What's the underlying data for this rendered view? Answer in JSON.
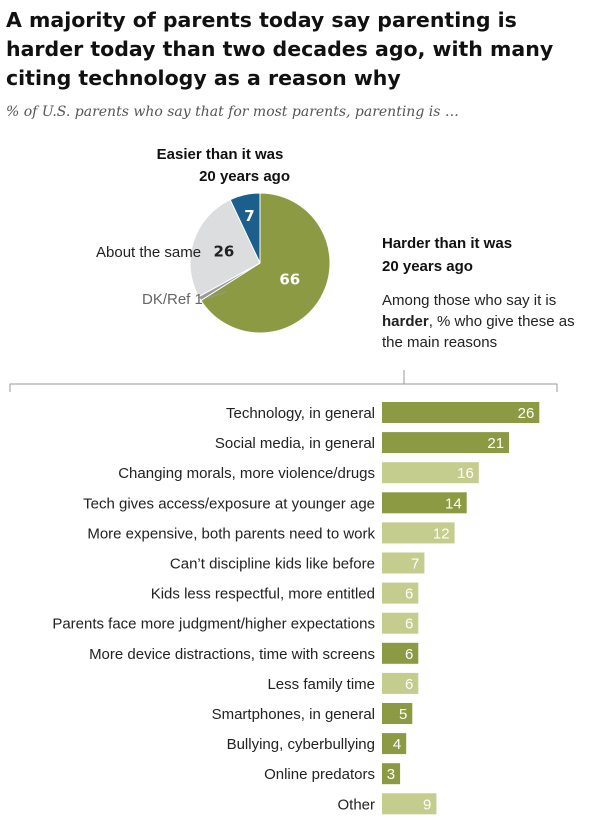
{
  "title": "A majority of parents today say parenting is harder today than two decades ago, with many citing technology as a reason why",
  "subtitle": "% of U.S. parents who say that for most parents, parenting is …",
  "colors": {
    "olive": "#8c9a44",
    "olive_light": "#c4cc8e",
    "blue": "#1d5f8c",
    "light_grey": "#dcdddf",
    "dk_grey": "#9a9a9a",
    "leader": "#999999"
  },
  "chart_data": [
    {
      "type": "pie",
      "title": "",
      "slices": [
        {
          "label_line1": "Harder than it was",
          "label_line2": "20 years ago",
          "value": 66,
          "value_label": "66",
          "color": "#8c9a44",
          "value_color": "#ffffff"
        },
        {
          "label": "DK/Ref 1",
          "value": 1,
          "value_label": "",
          "color": "#9a9a9a"
        },
        {
          "label": "About the same",
          "value": 26,
          "value_label": "26",
          "color": "#dcdddf",
          "value_color": "#222222"
        },
        {
          "label_line1": "Easier than it was",
          "label_line2": "20 years ago",
          "value": 7,
          "value_label": "7",
          "color": "#1d5f8c",
          "value_color": "#ffffff"
        }
      ]
    },
    {
      "type": "bar",
      "orientation": "horizontal",
      "intro_line1": "Among those who say it is",
      "intro_bold": "harder",
      "intro_line2_rest": ", % who give these as",
      "intro_line3": "the main reasons",
      "categories": [
        "Technology, in general",
        "Social media, in general",
        "Changing morals, more violence/drugs",
        "Tech gives access/exposure at younger age",
        "More expensive, both parents need to work",
        "Can’t discipline kids like before",
        "Kids less respectful, more entitled",
        "Parents face more judgment/higher expectations",
        "More device distractions, time with screens",
        "Less family time",
        "Smartphones, in general",
        "Bullying, cyberbullying",
        "Online predators",
        "Other"
      ],
      "values": [
        26,
        21,
        16,
        14,
        12,
        7,
        6,
        6,
        6,
        6,
        5,
        4,
        3,
        9
      ],
      "tech_related": [
        true,
        true,
        false,
        true,
        false,
        false,
        false,
        false,
        true,
        false,
        true,
        true,
        true,
        false
      ]
    }
  ]
}
